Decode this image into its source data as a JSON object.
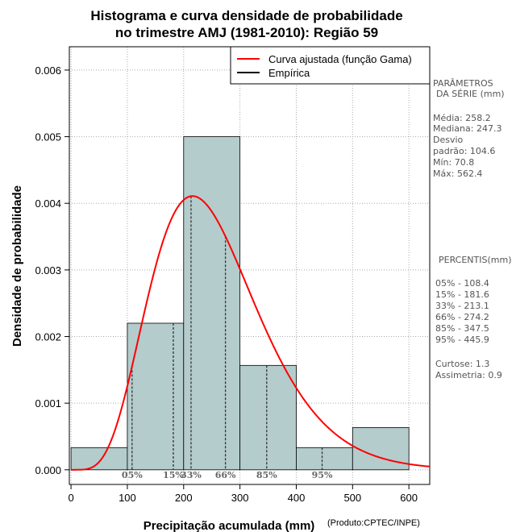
{
  "chart_data": {
    "type": "bar",
    "title_line1": "Histograma e curva densidade de probabilidade",
    "title_line2": "no trimestre AMJ (1981-2010): Região 59",
    "xlabel": "Precipitação acumulada (mm)",
    "ylabel": "Densidade de probabilidade",
    "credit": "(Produto:CPTEC/INPE)",
    "xlim": [
      -3,
      637
    ],
    "ylim": [
      -0.00022,
      0.00635
    ],
    "x_ticks": [
      0,
      100,
      200,
      300,
      400,
      500,
      600
    ],
    "x_tick_labels": [
      "0",
      "100",
      "200",
      "300",
      "400",
      "500",
      "600"
    ],
    "y_ticks": [
      0.0,
      0.001,
      0.002,
      0.003,
      0.004,
      0.005,
      0.006
    ],
    "y_tick_labels": [
      "0.000",
      "0.001",
      "0.002",
      "0.003",
      "0.004",
      "0.005",
      "0.006"
    ],
    "grid": true,
    "bins": [
      {
        "from": 0,
        "to": 100,
        "density": 0.000333
      },
      {
        "from": 100,
        "to": 200,
        "density": 0.0022
      },
      {
        "from": 200,
        "to": 300,
        "density": 0.005
      },
      {
        "from": 300,
        "to": 400,
        "density": 0.001567
      },
      {
        "from": 400,
        "to": 500,
        "density": 0.000333
      },
      {
        "from": 500,
        "to": 600,
        "density": 0.000633
      }
    ],
    "bar_color": "#b4cccc",
    "curve": {
      "name": "Curva ajustada (função Gama)",
      "color": "#ff0000",
      "distribution": "gamma",
      "shape": 6.1,
      "scale": 42.3
    },
    "legend": {
      "position": "top-right",
      "entries": [
        {
          "label": "Curva ajustada (função Gama)",
          "color": "#ff0000"
        },
        {
          "label": "Empírica",
          "color": "#000000"
        }
      ]
    },
    "percentiles": [
      {
        "label": "05%",
        "x": 108.4
      },
      {
        "label": "15%",
        "x": 181.6
      },
      {
        "label": "33%",
        "x": 213.1
      },
      {
        "label": "66%",
        "x": 274.2
      },
      {
        "label": "85%",
        "x": 347.5
      },
      {
        "label": "95%",
        "x": 445.9
      }
    ]
  },
  "side_panel": {
    "params_title_1": "PARÂMETROS",
    "params_title_2": "DA SÉRIE (mm)",
    "media": "Média:  258.2",
    "mediana": "Mediana:  247.3",
    "desvio_1": "Desvio",
    "desvio_2": "padrão:  104.6",
    "min": "Mín:  70.8",
    "max": "Máx:  562.4",
    "percentis_title": "PERCENTIS(mm)",
    "p05": "05% -  108.4",
    "p15": "15% -  181.6",
    "p33": "33% -  213.1",
    "p66": "66% -  274.2",
    "p85": "85% -  347.5",
    "p95": "95% -  445.9",
    "curtose": "Curtose:  1.3",
    "assimetria": "Assimetria:  0.9"
  }
}
